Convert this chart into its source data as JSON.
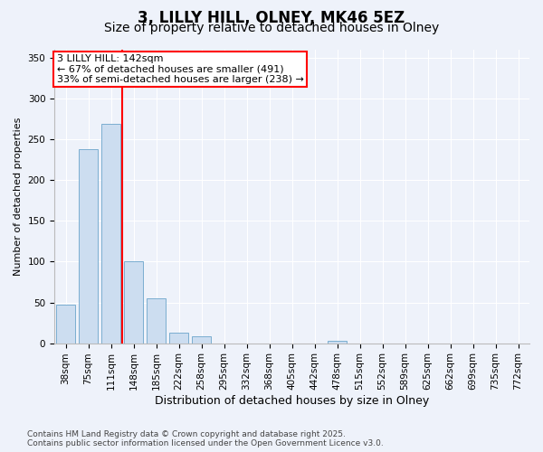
{
  "title1": "3, LILLY HILL, OLNEY, MK46 5EZ",
  "title2": "Size of property relative to detached houses in Olney",
  "xlabel": "Distribution of detached houses by size in Olney",
  "ylabel": "Number of detached properties",
  "categories": [
    "38sqm",
    "75sqm",
    "111sqm",
    "148sqm",
    "185sqm",
    "222sqm",
    "258sqm",
    "295sqm",
    "332sqm",
    "368sqm",
    "405sqm",
    "442sqm",
    "478sqm",
    "515sqm",
    "552sqm",
    "589sqm",
    "625sqm",
    "662sqm",
    "699sqm",
    "735sqm",
    "772sqm"
  ],
  "values": [
    47,
    238,
    269,
    100,
    55,
    13,
    8,
    0,
    0,
    0,
    0,
    0,
    3,
    0,
    0,
    0,
    0,
    0,
    0,
    0,
    0
  ],
  "bar_color": "#ccddf0",
  "bar_edge_color": "#7aaed0",
  "vline_pos": 2.5,
  "vline_color": "red",
  "annotation_line1": "3 LILLY HILL: 142sqm",
  "annotation_line2": "← 67% of detached houses are smaller (491)",
  "annotation_line3": "33% of semi-detached houses are larger (238) →",
  "annotation_box_color": "white",
  "annotation_box_edge": "red",
  "ylim": [
    0,
    360
  ],
  "yticks": [
    0,
    50,
    100,
    150,
    200,
    250,
    300,
    350
  ],
  "background_color": "#eef2fa",
  "grid_color": "white",
  "footer1": "Contains HM Land Registry data © Crown copyright and database right 2025.",
  "footer2": "Contains public sector information licensed under the Open Government Licence v3.0.",
  "title1_fontsize": 12,
  "title2_fontsize": 10,
  "xlabel_fontsize": 9,
  "ylabel_fontsize": 8,
  "tick_fontsize": 7.5,
  "annot_fontsize": 8,
  "footer_fontsize": 6.5
}
